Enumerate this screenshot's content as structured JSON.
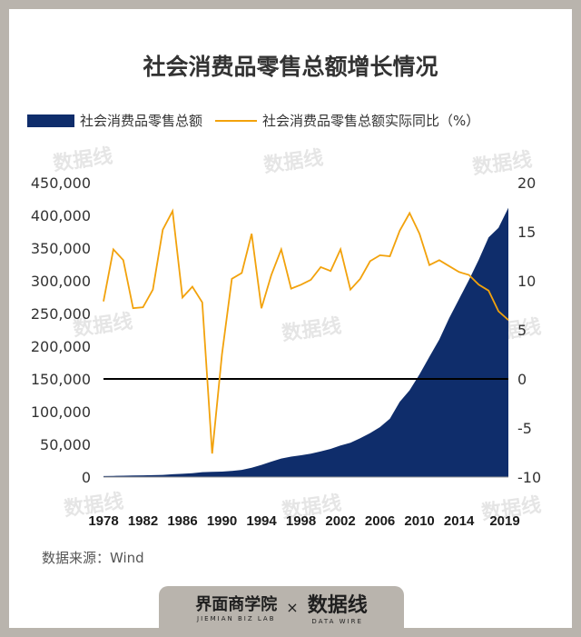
{
  "title": "社会消费品零售总额增长情况",
  "legend": {
    "area_label": "社会消费品零售总额",
    "line_label": "社会消费品零售总额实际同比（%）"
  },
  "source": "数据来源：Wind",
  "footer": {
    "brand": "界面商学院",
    "brand_sub": "JIEMIAN BIZ LAB",
    "times": "×",
    "partner": "数据线",
    "partner_sub": "DATA WIRE"
  },
  "watermark": "数据线",
  "colors": {
    "area": "#0f2d6b",
    "line": "#f2a20c",
    "zero_line": "#000000"
  },
  "chart_data": {
    "type": "area",
    "title": "社会消费品零售总额增长情况",
    "xlabel": "",
    "ylabel": "",
    "x": [
      1978,
      1979,
      1980,
      1981,
      1982,
      1983,
      1984,
      1985,
      1986,
      1987,
      1988,
      1989,
      1990,
      1991,
      1992,
      1993,
      1994,
      1995,
      1996,
      1997,
      1998,
      1999,
      2000,
      2001,
      2002,
      2003,
      2004,
      2005,
      2006,
      2007,
      2008,
      2009,
      2010,
      2011,
      2012,
      2013,
      2014,
      2015,
      2016,
      2017,
      2018,
      2019
    ],
    "x_ticks": [
      "1978",
      "1982",
      "1986",
      "1990",
      "1994",
      "1998",
      "2002",
      "2006",
      "2010",
      "2014",
      "2019"
    ],
    "y_left": {
      "lim": [
        0,
        450000
      ],
      "ticks": [
        "0",
        "50,000",
        "100,000",
        "150,000",
        "200,000",
        "250,000",
        "300,000",
        "350,000",
        "400,000",
        "450,000"
      ]
    },
    "y_right": {
      "lim": [
        -10,
        20
      ],
      "ticks": [
        "-10",
        "-5",
        "0",
        "5",
        "10",
        "15",
        "20"
      ]
    },
    "series": [
      {
        "name": "社会消费品零售总额",
        "type": "area",
        "axis": "left",
        "values": [
          1559,
          1800,
          2140,
          2350,
          2570,
          2849,
          3376,
          4305,
          4950,
          5820,
          7440,
          8101,
          8300,
          9416,
          10994,
          14270,
          18623,
          23614,
          28360,
          31253,
          33378,
          35648,
          39106,
          43055,
          48136,
          52516,
          59501,
          67177,
          76410,
          89210,
          114830,
          132678,
          156998,
          183919,
          210307,
          242843,
          271896,
          300931,
          332316,
          366262,
          380987,
          411649
        ]
      },
      {
        "name": "社会消费品零售总额实际同比（%）",
        "type": "line",
        "axis": "right",
        "values": [
          7.9,
          13.2,
          12.1,
          7.2,
          7.3,
          9.1,
          15.2,
          17.1,
          8.3,
          9.4,
          7.8,
          -7.6,
          2.5,
          10.2,
          10.8,
          14.8,
          7.2,
          10.6,
          13.2,
          9.2,
          9.6,
          10.1,
          11.4,
          11.0,
          13.2,
          9.1,
          10.2,
          12.0,
          12.6,
          12.5,
          15.1,
          16.9,
          14.8,
          11.6,
          12.1,
          11.5,
          10.9,
          10.6,
          9.6,
          9.0,
          6.9,
          6.0
        ]
      }
    ]
  }
}
